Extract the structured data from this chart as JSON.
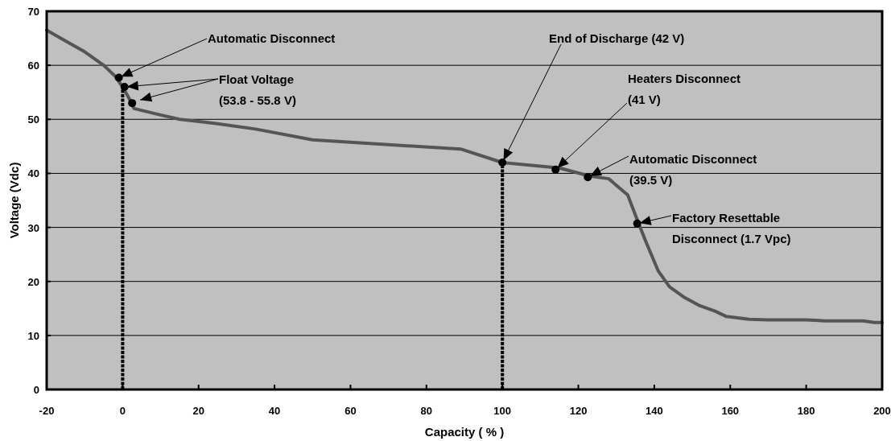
{
  "chart_data": {
    "type": "line",
    "xlabel": "Capacity ( % )",
    "ylabel": "Voltage (Vdc)",
    "xlim": [
      -20,
      200
    ],
    "ylim": [
      0,
      70
    ],
    "xticks": [
      -20,
      0,
      20,
      40,
      60,
      80,
      100,
      120,
      140,
      160,
      180,
      200
    ],
    "yticks": [
      0,
      10,
      20,
      30,
      40,
      50,
      60,
      70
    ],
    "grid": "y",
    "series": [
      {
        "color": "#555555",
        "x": [
          -20,
          -15,
          -10,
          -5,
          -2,
          0,
          2,
          3,
          10,
          15,
          25,
          35,
          50,
          70,
          89,
          100,
          115,
          123,
          128,
          133,
          136,
          138,
          141,
          144,
          148,
          152,
          156,
          159,
          165,
          170,
          180,
          185,
          195,
          198,
          200
        ],
        "values": [
          66.5,
          64.5,
          62.5,
          60,
          58,
          56,
          53.5,
          52,
          50.8,
          50,
          49.2,
          48.2,
          46.2,
          45.3,
          44.5,
          42,
          41,
          39.5,
          39,
          36,
          30.5,
          27,
          22,
          19,
          17,
          15.5,
          14.5,
          13.5,
          13,
          12.9,
          12.9,
          12.7,
          12.7,
          12.4,
          12.4
        ]
      },
      {
        "type": "line",
        "color": "#000000",
        "line_style": "dotted",
        "x": [
          0,
          0
        ],
        "values": [
          0,
          56
        ]
      },
      {
        "type": "line",
        "color": "#000000",
        "line_style": "dotted",
        "x": [
          100,
          100
        ],
        "values": [
          0,
          42
        ]
      },
      {
        "type": "scatter",
        "color": "#000000",
        "marker": "circle",
        "x": [
          -1,
          0.5,
          2.5,
          100,
          114,
          122.5,
          135.5
        ],
        "values": [
          57.7,
          56,
          53,
          42,
          40.7,
          39.3,
          30.7
        ]
      }
    ],
    "annotations": [
      {
        "text": "Automatic Disconnect",
        "x": -1,
        "y": 57.7
      },
      {
        "text": "Float Voltage\n(53.8 - 55.8 V)",
        "x": 0.5,
        "y": 56
      },
      {
        "text": "End of Discharge (42 V)",
        "x": 100,
        "y": 42
      },
      {
        "text": "Heaters Disconnect\n(41 V)",
        "x": 114,
        "y": 40.7
      },
      {
        "text": "Automatic Disconnect\n(39.5 V)",
        "x": 122.5,
        "y": 39.3
      },
      {
        "text": "Factory Resettable\nDisconnect (1.7 Vpc)",
        "x": 135.5,
        "y": 30.7
      }
    ]
  }
}
